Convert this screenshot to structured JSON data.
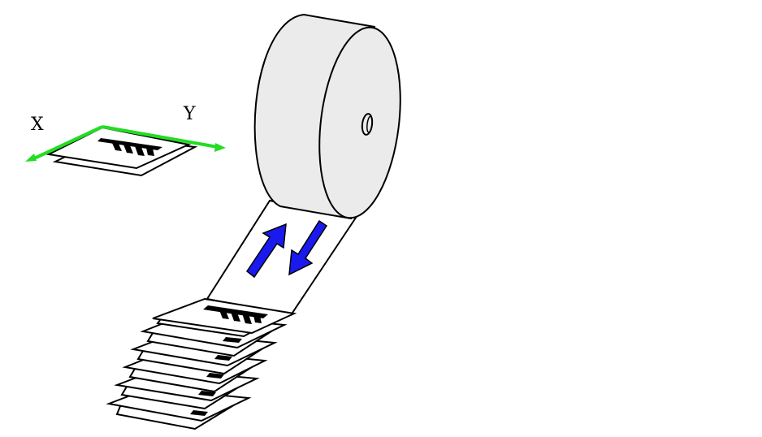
{
  "axes": {
    "x_label": "X",
    "y_label": "Y",
    "color": "#22dd22"
  },
  "colors": {
    "roll_fill": "#ebebeb",
    "arrow_fill": "#1a1aee",
    "sheet_fill": "#ffffff",
    "outline": "#000000"
  },
  "stack": {
    "sheet_count": 6
  }
}
